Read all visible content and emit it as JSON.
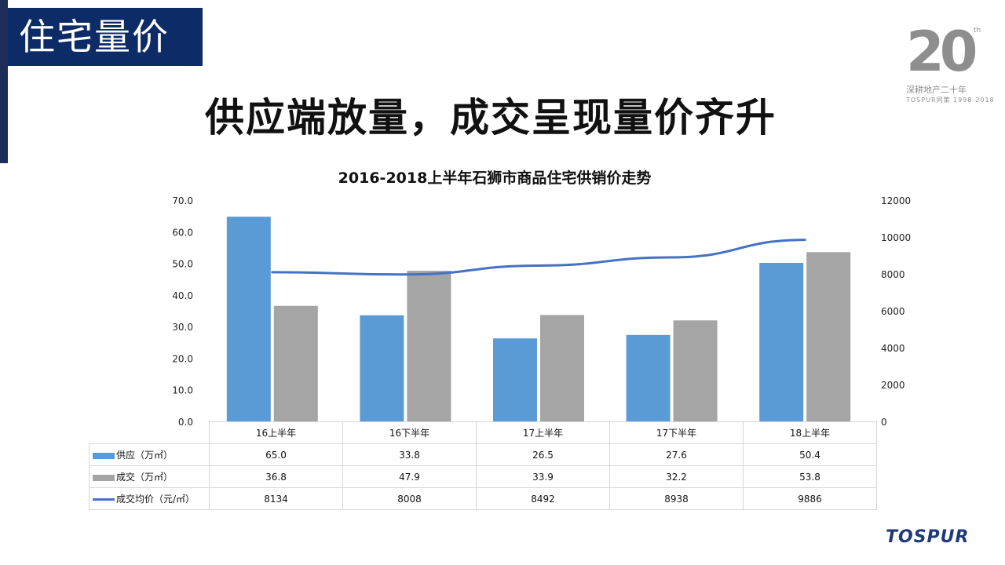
{
  "section_tag": "住宅量价",
  "headline": "供应端放量，成交呈现量价齐升",
  "logo": {
    "number": "20",
    "superscript": "th",
    "slogan": "深耕地产二十年",
    "brandline": "TOSPUR同策 1998-2018"
  },
  "brand": "TOSPUR",
  "colors": {
    "supply": "#5b9bd5",
    "deal": "#a5a5a5",
    "price": "#4472c4",
    "header": "#0d2b66"
  },
  "chart_data": {
    "type": "bar",
    "title": "2016-2018上半年石狮市商品住宅供销价走势",
    "categories": [
      "16上半年",
      "16下半年",
      "17上半年",
      "17下半年",
      "18上半年"
    ],
    "series": [
      {
        "name": "供应（万㎡）",
        "type": "bar",
        "axis": "left",
        "values": [
          65.0,
          33.8,
          26.5,
          27.6,
          50.4
        ],
        "display": [
          "65.0",
          "33.8",
          "26.5",
          "27.6",
          "50.4"
        ]
      },
      {
        "name": "成交（万㎡）",
        "type": "bar",
        "axis": "left",
        "values": [
          36.8,
          47.9,
          33.9,
          32.2,
          53.8
        ],
        "display": [
          "36.8",
          "47.9",
          "33.9",
          "32.2",
          "53.8"
        ]
      },
      {
        "name": "成交均价（元/㎡）",
        "type": "line",
        "axis": "right",
        "values": [
          8134,
          8008,
          8492,
          8938,
          9886
        ],
        "display": [
          "8134",
          "8008",
          "8492",
          "8938",
          "9886"
        ]
      }
    ],
    "ylim": [
      0,
      70
    ],
    "y_ticks": [
      "0.0",
      "10.0",
      "20.0",
      "30.0",
      "40.0",
      "50.0",
      "60.0",
      "70.0"
    ],
    "y2lim": [
      0,
      12000
    ],
    "y2_ticks": [
      "0",
      "2000",
      "4000",
      "6000",
      "8000",
      "10000",
      "12000"
    ],
    "grid": false,
    "legend": "data table below chart"
  }
}
